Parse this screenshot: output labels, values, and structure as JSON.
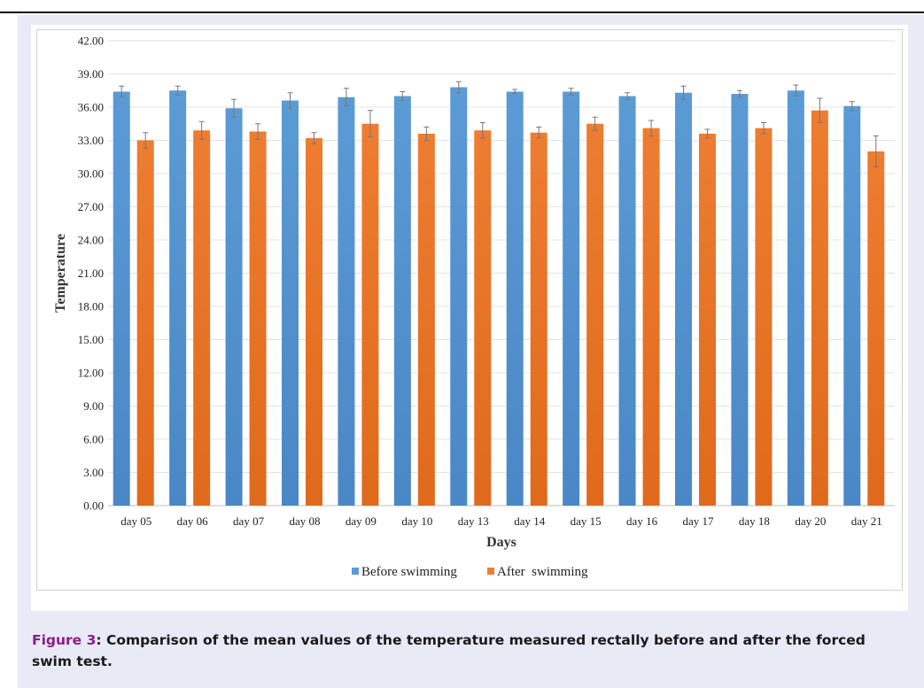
{
  "caption": {
    "label": "Figure 3",
    "separator": ": ",
    "text": "Comparison of the mean values of the temperature measured rectally before and after the forced swim test."
  },
  "colors": {
    "before": "#5b9bd5",
    "before_dark": "#4a87c6",
    "after": "#ed7d31",
    "after_dark": "#e06a1b",
    "caption_label": "#8b1c8b",
    "panel_background": "#e8ebf6"
  },
  "chart_data": {
    "type": "bar",
    "title": "",
    "xlabel": "Days",
    "ylabel": "Temperature",
    "ylim": [
      0,
      42
    ],
    "yticks": [
      "0.00",
      "3.00",
      "6.00",
      "9.00",
      "12.00",
      "15.00",
      "18.00",
      "21.00",
      "24.00",
      "27.00",
      "30.00",
      "33.00",
      "36.00",
      "39.00",
      "42.00"
    ],
    "grid": true,
    "legend": "bottom-center",
    "categories": [
      "day 05",
      "day 06",
      "day 07",
      "day 08",
      "day 09",
      "day 10",
      "day 13",
      "day 14",
      "day 15",
      "day 16",
      "day 17",
      "day 18",
      "day 20",
      "day 21"
    ],
    "series": [
      {
        "name": "Before swimming",
        "values": [
          37.4,
          37.5,
          35.9,
          36.6,
          36.9,
          37.0,
          37.8,
          37.4,
          37.4,
          37.0,
          37.3,
          37.2,
          37.5,
          36.1
        ],
        "errors": [
          0.5,
          0.4,
          0.8,
          0.7,
          0.8,
          0.4,
          0.5,
          0.2,
          0.3,
          0.3,
          0.6,
          0.3,
          0.5,
          0.4
        ]
      },
      {
        "name": "After  swimming",
        "values": [
          33.0,
          33.9,
          33.8,
          33.2,
          34.5,
          33.6,
          33.9,
          33.7,
          34.5,
          34.1,
          33.6,
          34.1,
          35.7,
          32.0
        ],
        "errors": [
          0.7,
          0.8,
          0.7,
          0.5,
          1.2,
          0.6,
          0.7,
          0.5,
          0.6,
          0.7,
          0.4,
          0.5,
          1.1,
          1.4
        ]
      }
    ]
  }
}
